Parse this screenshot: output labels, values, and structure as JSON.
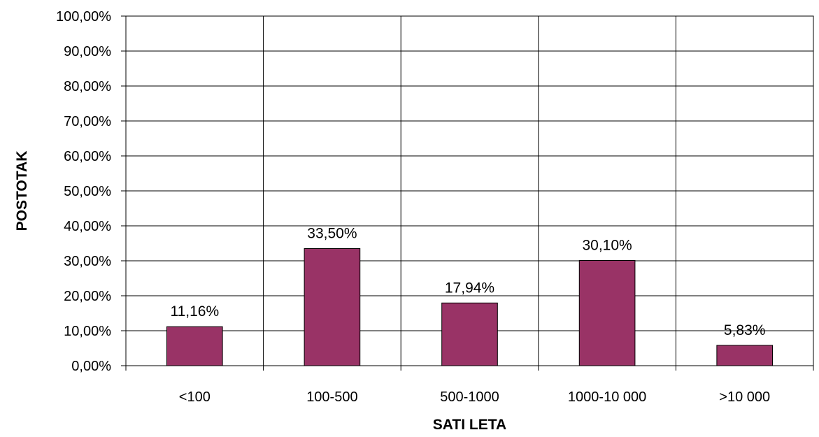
{
  "chart_data": {
    "type": "bar",
    "title": "",
    "xlabel": "SATI LETA",
    "ylabel": "POSTOTAK",
    "categories": [
      "<100",
      "100-500",
      "500-1000",
      "1000-10 000",
      ">10 000"
    ],
    "values": [
      11.16,
      33.5,
      17.94,
      30.1,
      5.83
    ],
    "value_labels": [
      "11,16%",
      "33,50%",
      "17,94%",
      "30,10%",
      "5,83%"
    ],
    "ylim": [
      0,
      100
    ],
    "yticks": [
      0,
      10,
      20,
      30,
      40,
      50,
      60,
      70,
      80,
      90,
      100
    ],
    "ytick_labels": [
      "0,00%",
      "10,00%",
      "20,00%",
      "30,00%",
      "40,00%",
      "50,00%",
      "60,00%",
      "70,00%",
      "80,00%",
      "90,00%",
      "100,00%"
    ],
    "grid": true,
    "legend": "none",
    "bar_color": "#993366"
  }
}
